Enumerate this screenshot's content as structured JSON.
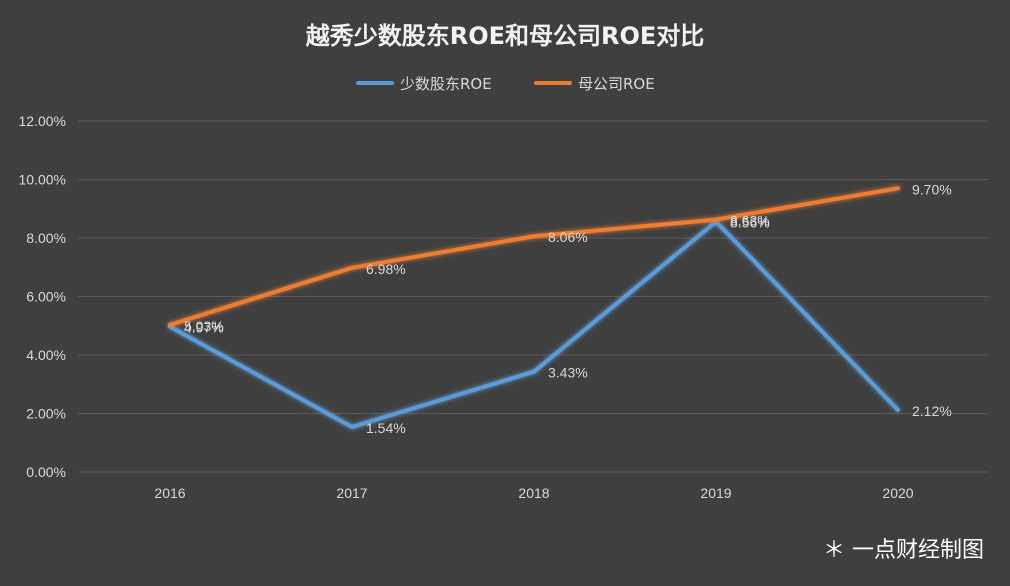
{
  "chart_data": {
    "type": "line",
    "title": "越秀少数股东ROE和母公司ROE对比",
    "categories": [
      "2016",
      "2017",
      "2018",
      "2019",
      "2020"
    ],
    "series": [
      {
        "name": "少数股东ROE",
        "color": "#5b9bd5",
        "values": [
          4.97,
          1.54,
          3.43,
          8.56,
          2.12
        ],
        "labels": [
          "4.97%",
          "1.54%",
          "3.43%",
          "8.56%",
          "2.12%"
        ]
      },
      {
        "name": "母公司ROE",
        "color": "#ed7d31",
        "values": [
          5.03,
          6.98,
          8.06,
          8.63,
          9.7
        ],
        "labels": [
          "5.03%",
          "6.98%",
          "8.06%",
          "8.63%",
          "9.70%"
        ]
      }
    ],
    "yticks": [
      "0.00%",
      "2.00%",
      "4.00%",
      "6.00%",
      "8.00%",
      "10.00%",
      "12.00%"
    ],
    "ylim": [
      0,
      12
    ],
    "xlabel": "",
    "ylabel": "",
    "grid": true,
    "legend": "top-center"
  },
  "credit": "＊ 一点财经制图"
}
